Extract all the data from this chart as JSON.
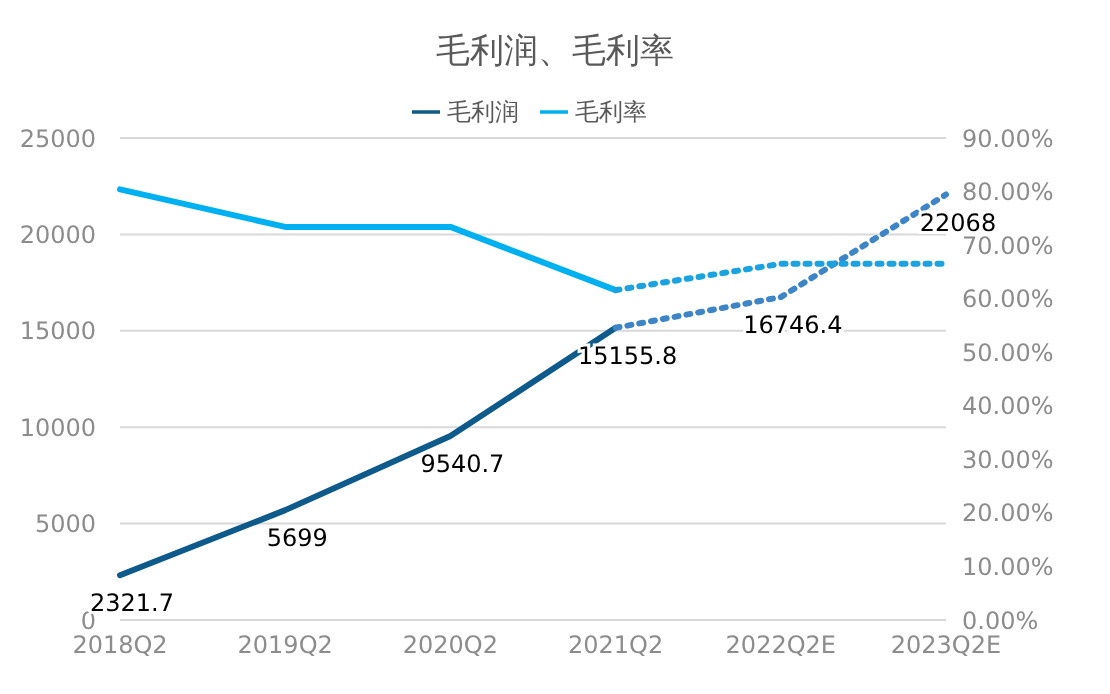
{
  "chart_data": {
    "type": "line",
    "title": "毛利润、毛利率",
    "categories": [
      "2018Q2",
      "2019Q2",
      "2020Q2",
      "2021Q2",
      "2022Q2E",
      "2023Q2E"
    ],
    "series": [
      {
        "name": "毛利润",
        "color": "#0e5a8a",
        "values": [
          2321.7,
          5699,
          9540.7,
          15155.8,
          null,
          null
        ],
        "value_labels": [
          "2321.7",
          "5699",
          "9540.7",
          "15155.8",
          null,
          null
        ],
        "line_style": "solid"
      },
      {
        "name": "毛利率",
        "color": "#00b0f0",
        "axis": "y2",
        "values": [
          80.4,
          73.4,
          73.4,
          61.6,
          null,
          null
        ],
        "line_style": "solid"
      },
      {
        "color": "#3d85c6",
        "values": [
          null,
          null,
          null,
          15155.8,
          16746.4,
          22068
        ],
        "value_labels": [
          null,
          null,
          null,
          null,
          "16746.4",
          "22068"
        ],
        "line_style": "dotted"
      },
      {
        "color": "#1aa3e0",
        "axis": "y2",
        "values": [
          null,
          null,
          null,
          61.6,
          66.5,
          66.5
        ],
        "line_style": "dotted"
      }
    ],
    "ylim": [
      0,
      25000
    ],
    "yticks": [
      0,
      5000,
      10000,
      15000,
      20000,
      25000
    ],
    "y2lim": [
      0,
      90
    ],
    "y2ticks": [
      {
        "value": 0,
        "label": "0.00%"
      },
      {
        "value": 10,
        "label": "10.00%"
      },
      {
        "value": 20,
        "label": "20.00%"
      },
      {
        "value": 30,
        "label": "30.00%"
      },
      {
        "value": 40,
        "label": "40.00%"
      },
      {
        "value": 50,
        "label": "50.00%"
      },
      {
        "value": 60,
        "label": "60.00%"
      },
      {
        "value": 70,
        "label": "70.00%"
      },
      {
        "value": 80,
        "label": "80.00%"
      },
      {
        "value": 90,
        "label": "90.00%"
      }
    ],
    "grid": "y",
    "legend": "top",
    "marker": "none"
  }
}
